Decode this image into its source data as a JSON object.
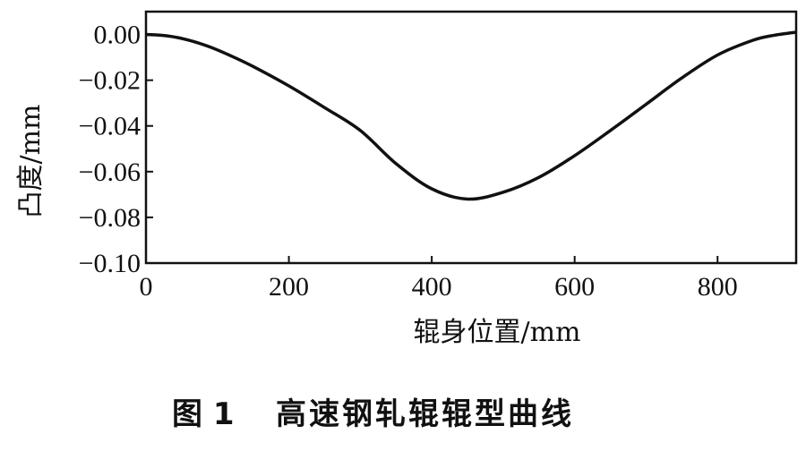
{
  "caption": {
    "label": "图 1",
    "text": "高速钢轧辊辊型曲线"
  },
  "chart_data": {
    "type": "line",
    "title": "",
    "xlabel": "辊身位置/mm",
    "ylabel": "凸度/mm",
    "xlim": [
      0,
      910
    ],
    "ylim": [
      -0.1,
      0.01
    ],
    "xticks": [
      0,
      200,
      400,
      600,
      800
    ],
    "xtick_labels": [
      "0",
      "200",
      "400",
      "600",
      "800"
    ],
    "yticks": [
      0.0,
      -0.02,
      -0.04,
      -0.06,
      -0.08,
      -0.1
    ],
    "ytick_labels": [
      "0.00",
      "−0.02",
      "−0.04",
      "−0.06",
      "−0.08",
      "−0.10"
    ],
    "grid": false,
    "legend": "none",
    "line_color": "#111111",
    "series": [
      {
        "x": [
          0,
          30,
          60,
          90,
          120,
          150,
          200,
          250,
          300,
          350,
          400,
          450,
          500,
          550,
          600,
          650,
          700,
          750,
          800,
          850,
          880,
          910
        ],
        "y": [
          0.0,
          -0.0006,
          -0.0025,
          -0.0055,
          -0.0095,
          -0.014,
          -0.0225,
          -0.032,
          -0.042,
          -0.0565,
          -0.0675,
          -0.072,
          -0.069,
          -0.0625,
          -0.053,
          -0.042,
          -0.0305,
          -0.019,
          -0.009,
          -0.0025,
          -0.0003,
          0.001
        ]
      }
    ]
  }
}
